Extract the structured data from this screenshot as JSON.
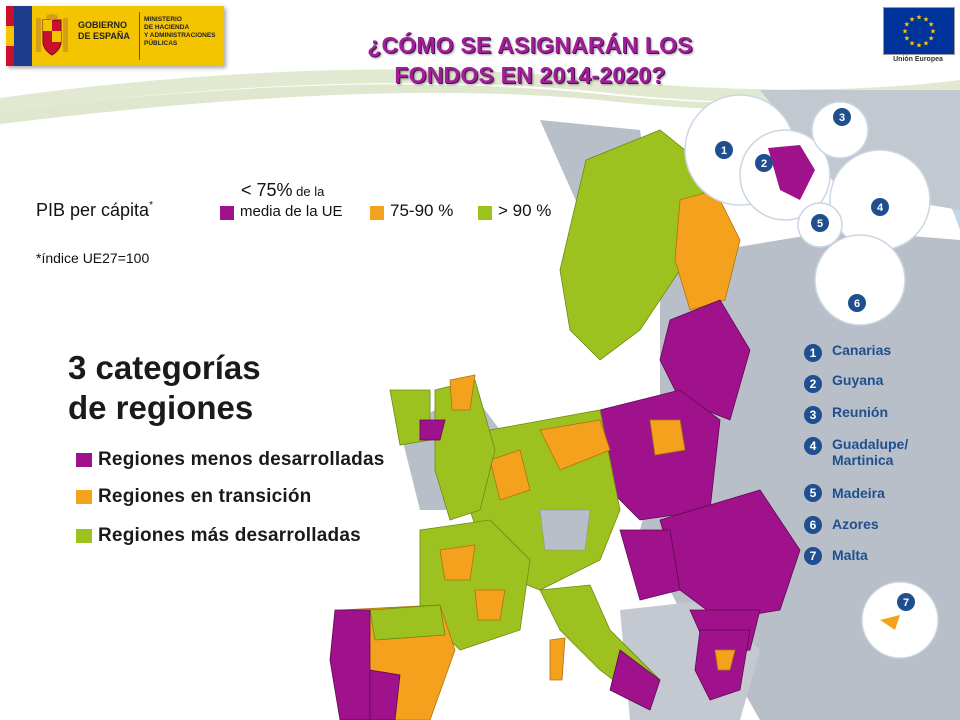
{
  "header": {
    "gov_name_line1": "GOBIERNO",
    "gov_name_line2": "DE ESPAÑA",
    "ministry_line1": "MINISTERIO",
    "ministry_line2": "DE HACIENDA",
    "ministry_line3": "Y ADMINISTRACIONES",
    "ministry_line4": "PÚBLICAS",
    "title_line1": "¿CÓMO SE ASIGNARÁN LOS",
    "title_line2": "FONDOS EN 2014-2020?",
    "eu_caption": "Unión Europea"
  },
  "legend_top": {
    "pib_label": "PIB per cápita",
    "pib_star": "*",
    "note": "*índice UE27=100",
    "lt75_prefix": "< 75%",
    "lt75_prefix_small": " de la",
    "lt75_line2": "media de la UE",
    "mid_label": "75-90 %",
    "high_label": "> 90 %"
  },
  "categories": {
    "title_line1": "3 categorías",
    "title_line2": "de regiones",
    "items": [
      {
        "label": "Regiones menos desarrolladas",
        "color": "#a0128c"
      },
      {
        "label": "Regiones en transición",
        "color": "#f4a21d"
      },
      {
        "label": "Regiones más desarrolladas",
        "color": "#9dc220"
      }
    ]
  },
  "insets": [
    {
      "num": "1",
      "label": "Canarias"
    },
    {
      "num": "2",
      "label": "Guyana"
    },
    {
      "num": "3",
      "label": "Reunión"
    },
    {
      "num": "4",
      "label": "Guadalupe/ Martinica"
    },
    {
      "num": "5",
      "label": "Madeira"
    },
    {
      "num": "6",
      "label": "Azores"
    },
    {
      "num": "7",
      "label": "Malta"
    }
  ],
  "colors": {
    "less_developed": "#a0128c",
    "transition": "#f4a21d",
    "more_developed": "#9dc220",
    "non_eu": "#b9bfc9",
    "sea": "#ffffff",
    "title": "#a11d9a",
    "badge": "#1f4f8e"
  }
}
